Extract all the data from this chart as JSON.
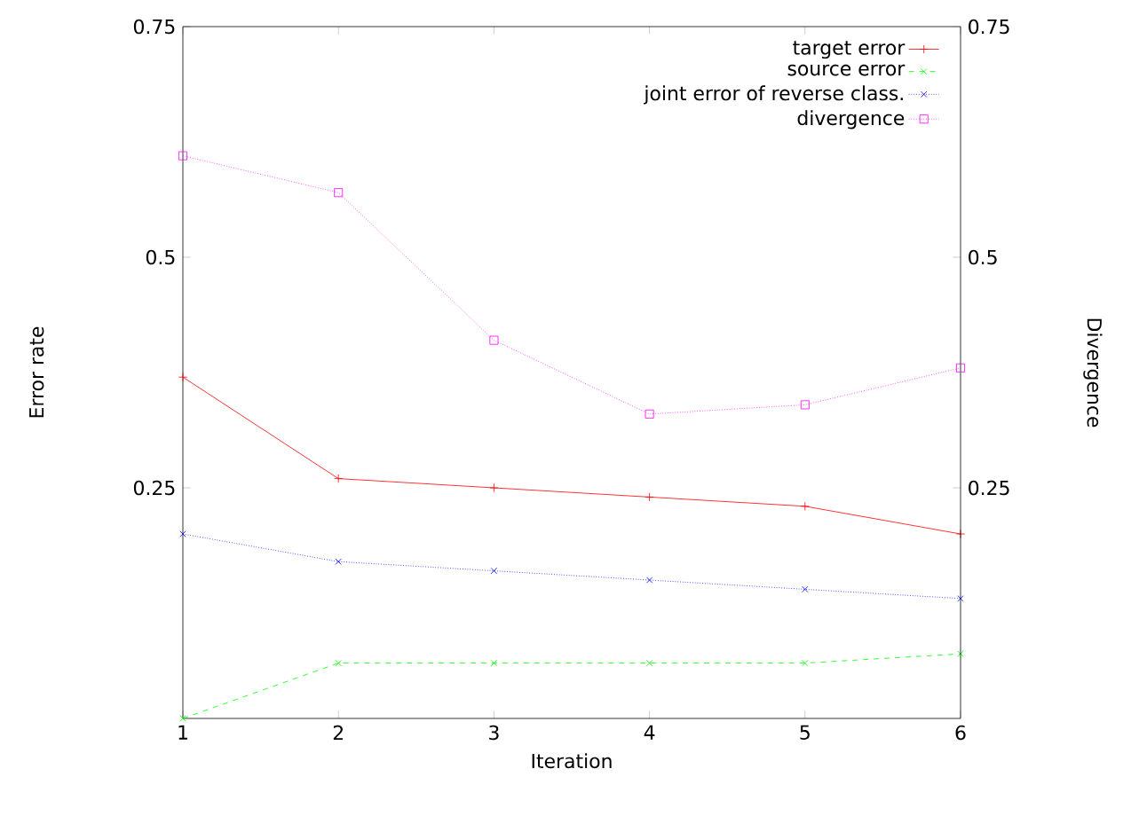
{
  "chart_data": {
    "type": "line",
    "xlabel": "Iteration",
    "ylabel": "Error rate",
    "y2label": "Divergence",
    "x": [
      1,
      2,
      3,
      4,
      5,
      6
    ],
    "xlim": [
      1,
      6
    ],
    "xticks": [
      1,
      2,
      3,
      4,
      5,
      6
    ],
    "ylim": [
      0,
      0.75
    ],
    "yticks": [
      0.25,
      0.5,
      0.75
    ],
    "y2lim": [
      0,
      0.75
    ],
    "y2ticks": [
      0.25,
      0.5,
      0.75
    ],
    "legend": "top right",
    "grid": false,
    "series": [
      {
        "name": "target error",
        "color": "#ff0000",
        "marker": "plus",
        "line_style": "solid",
        "values": [
          0.37,
          0.26,
          0.25,
          0.24,
          0.23,
          0.2
        ]
      },
      {
        "name": "source error",
        "color": "#00ff00",
        "marker": "cross",
        "line_style": "dashed",
        "values": [
          0.0,
          0.06,
          0.06,
          0.06,
          0.06,
          0.07
        ]
      },
      {
        "name": "joint error of reverse class.",
        "color": "#0000ff",
        "marker": "cross",
        "line_style": "dotted",
        "values": [
          0.2,
          0.17,
          0.16,
          0.15,
          0.14,
          0.13
        ]
      },
      {
        "name": "divergence",
        "color": "#ff00ff",
        "marker": "square",
        "line_style": "dotted",
        "axis": "y2",
        "values": [
          0.61,
          0.57,
          0.41,
          0.33,
          0.34,
          0.38
        ]
      }
    ]
  }
}
